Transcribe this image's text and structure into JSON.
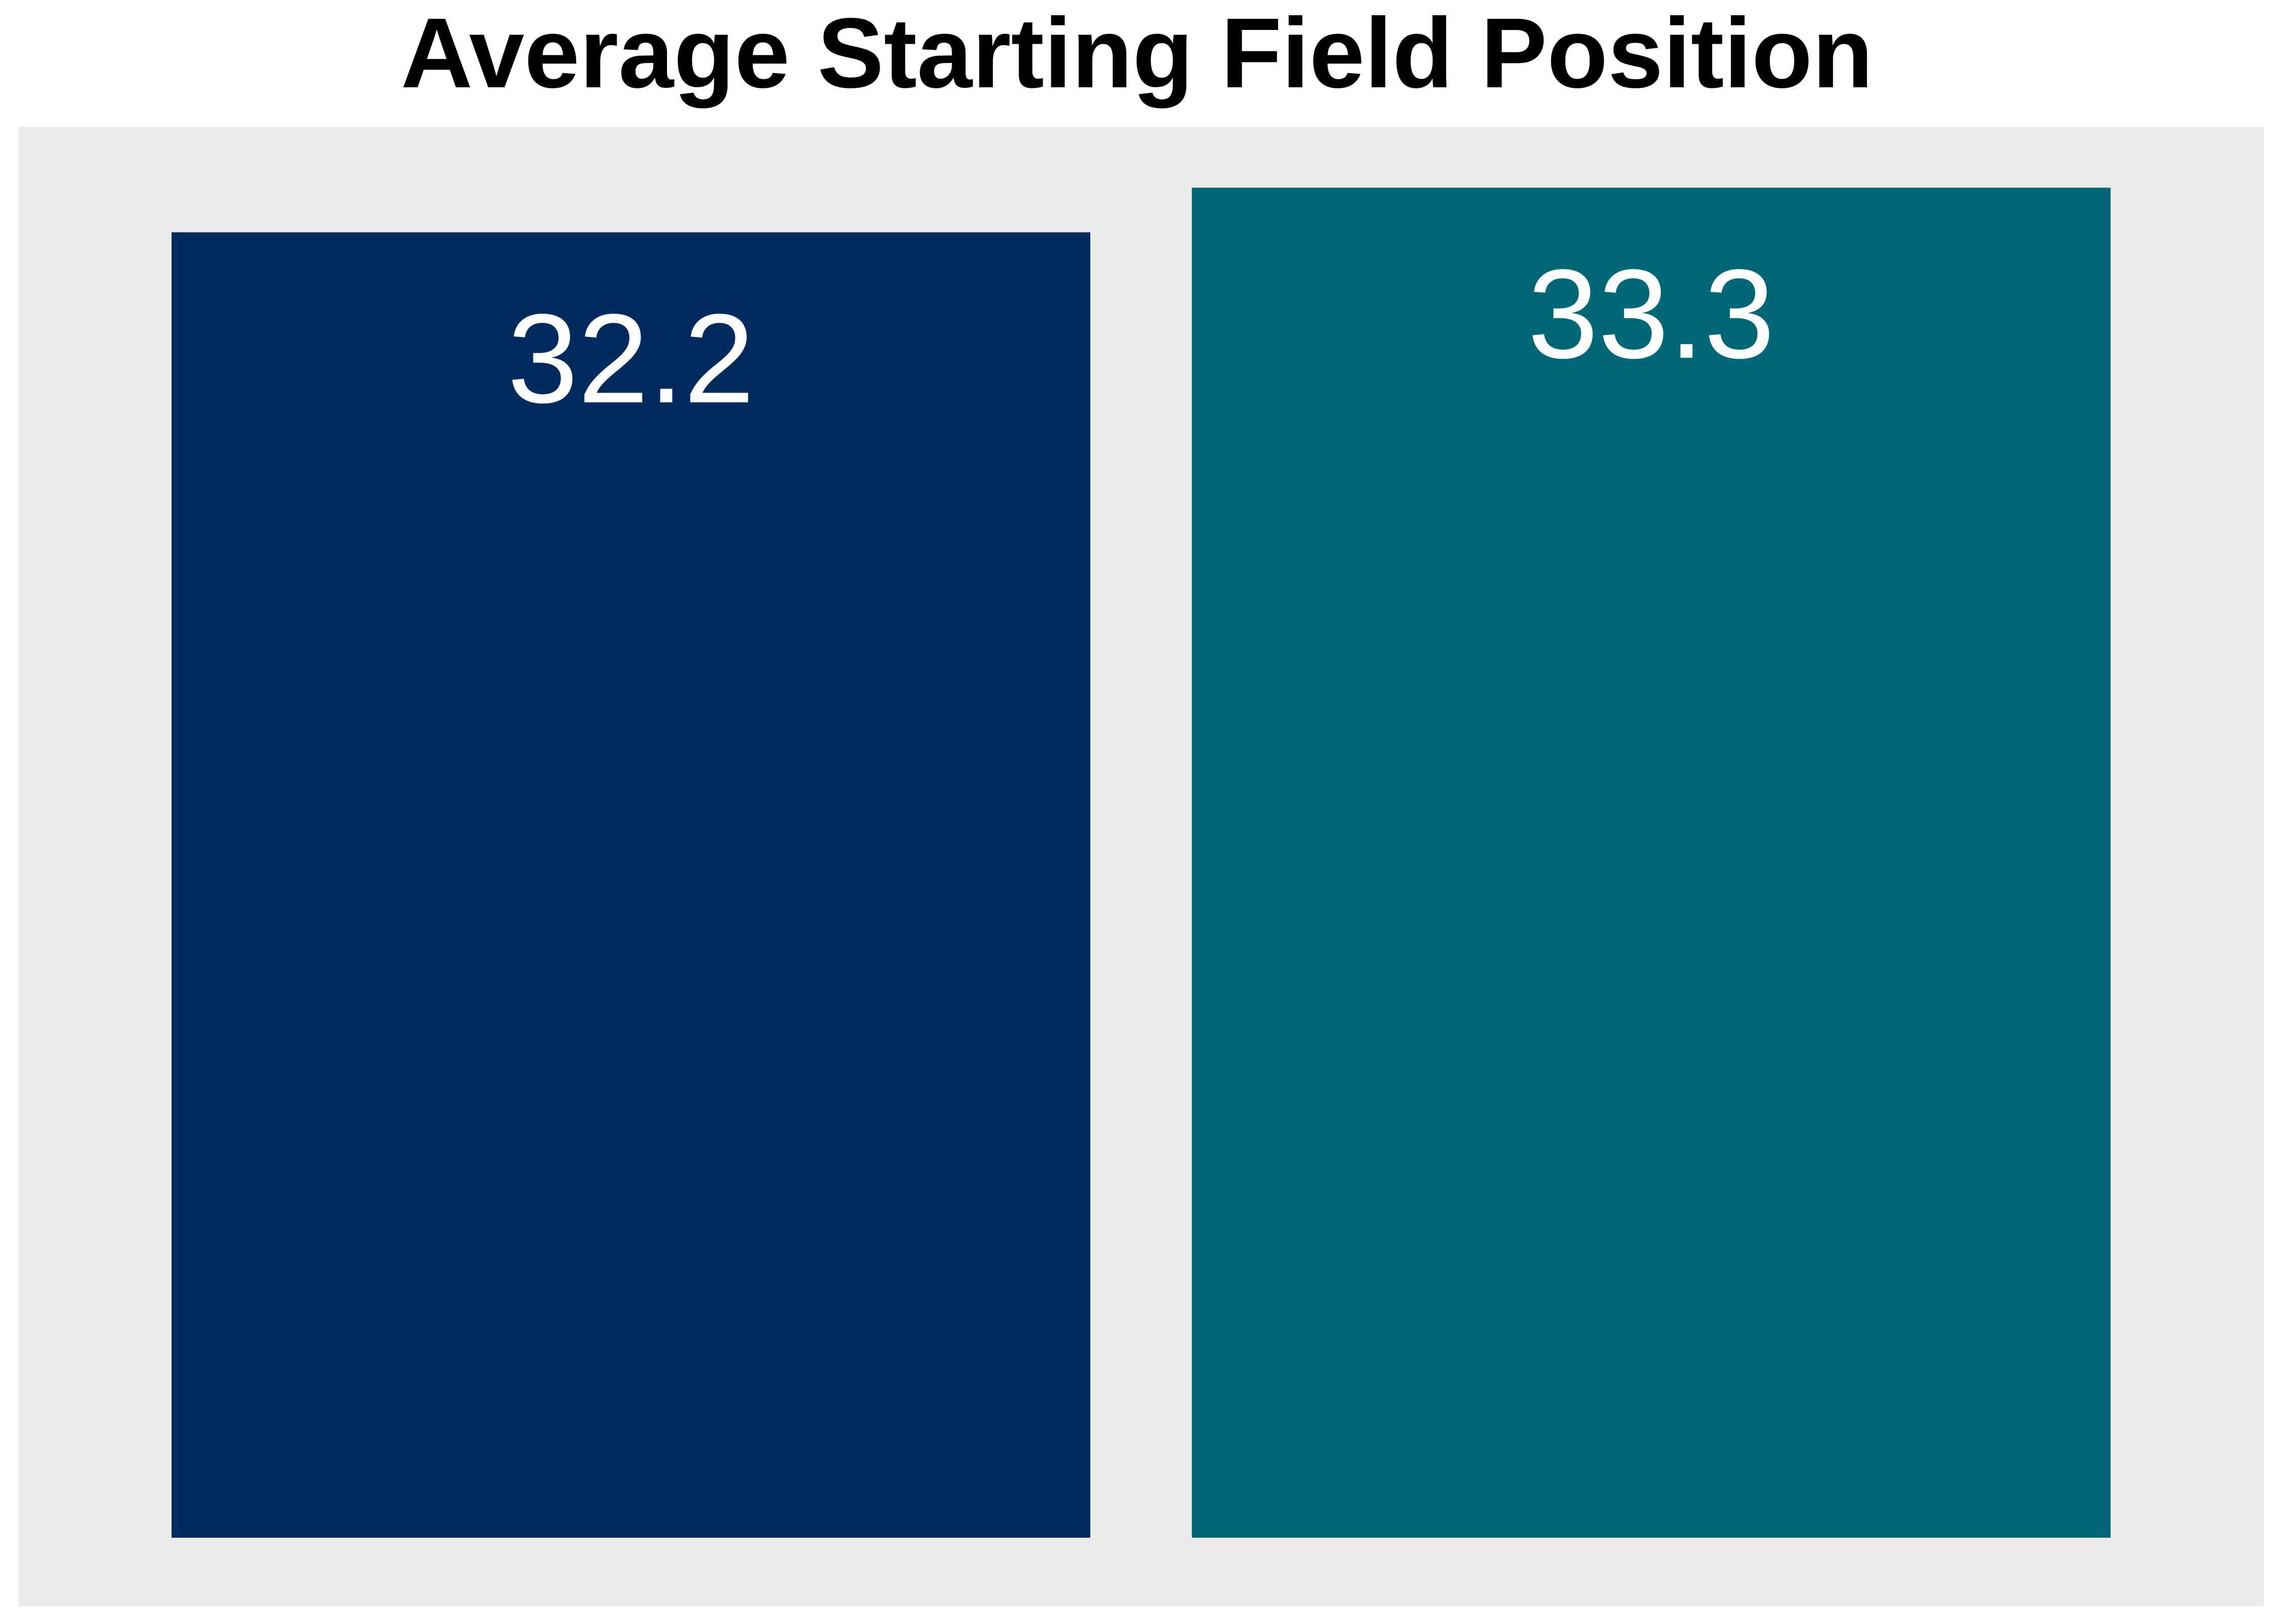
{
  "chart_data": {
    "type": "bar",
    "title": "Average Starting Field Position",
    "categories": [
      "",
      ""
    ],
    "values": [
      32.2,
      33.3
    ],
    "value_labels": [
      "32.2",
      "33.3"
    ],
    "colors": [
      "#002B5E",
      "#006778"
    ],
    "panel_background": "#EBEBEB",
    "label_color": "#FFFFFF",
    "ylim": [
      0,
      34.8
    ],
    "grid": false,
    "legend": "none",
    "xlabel": "",
    "ylabel": ""
  }
}
